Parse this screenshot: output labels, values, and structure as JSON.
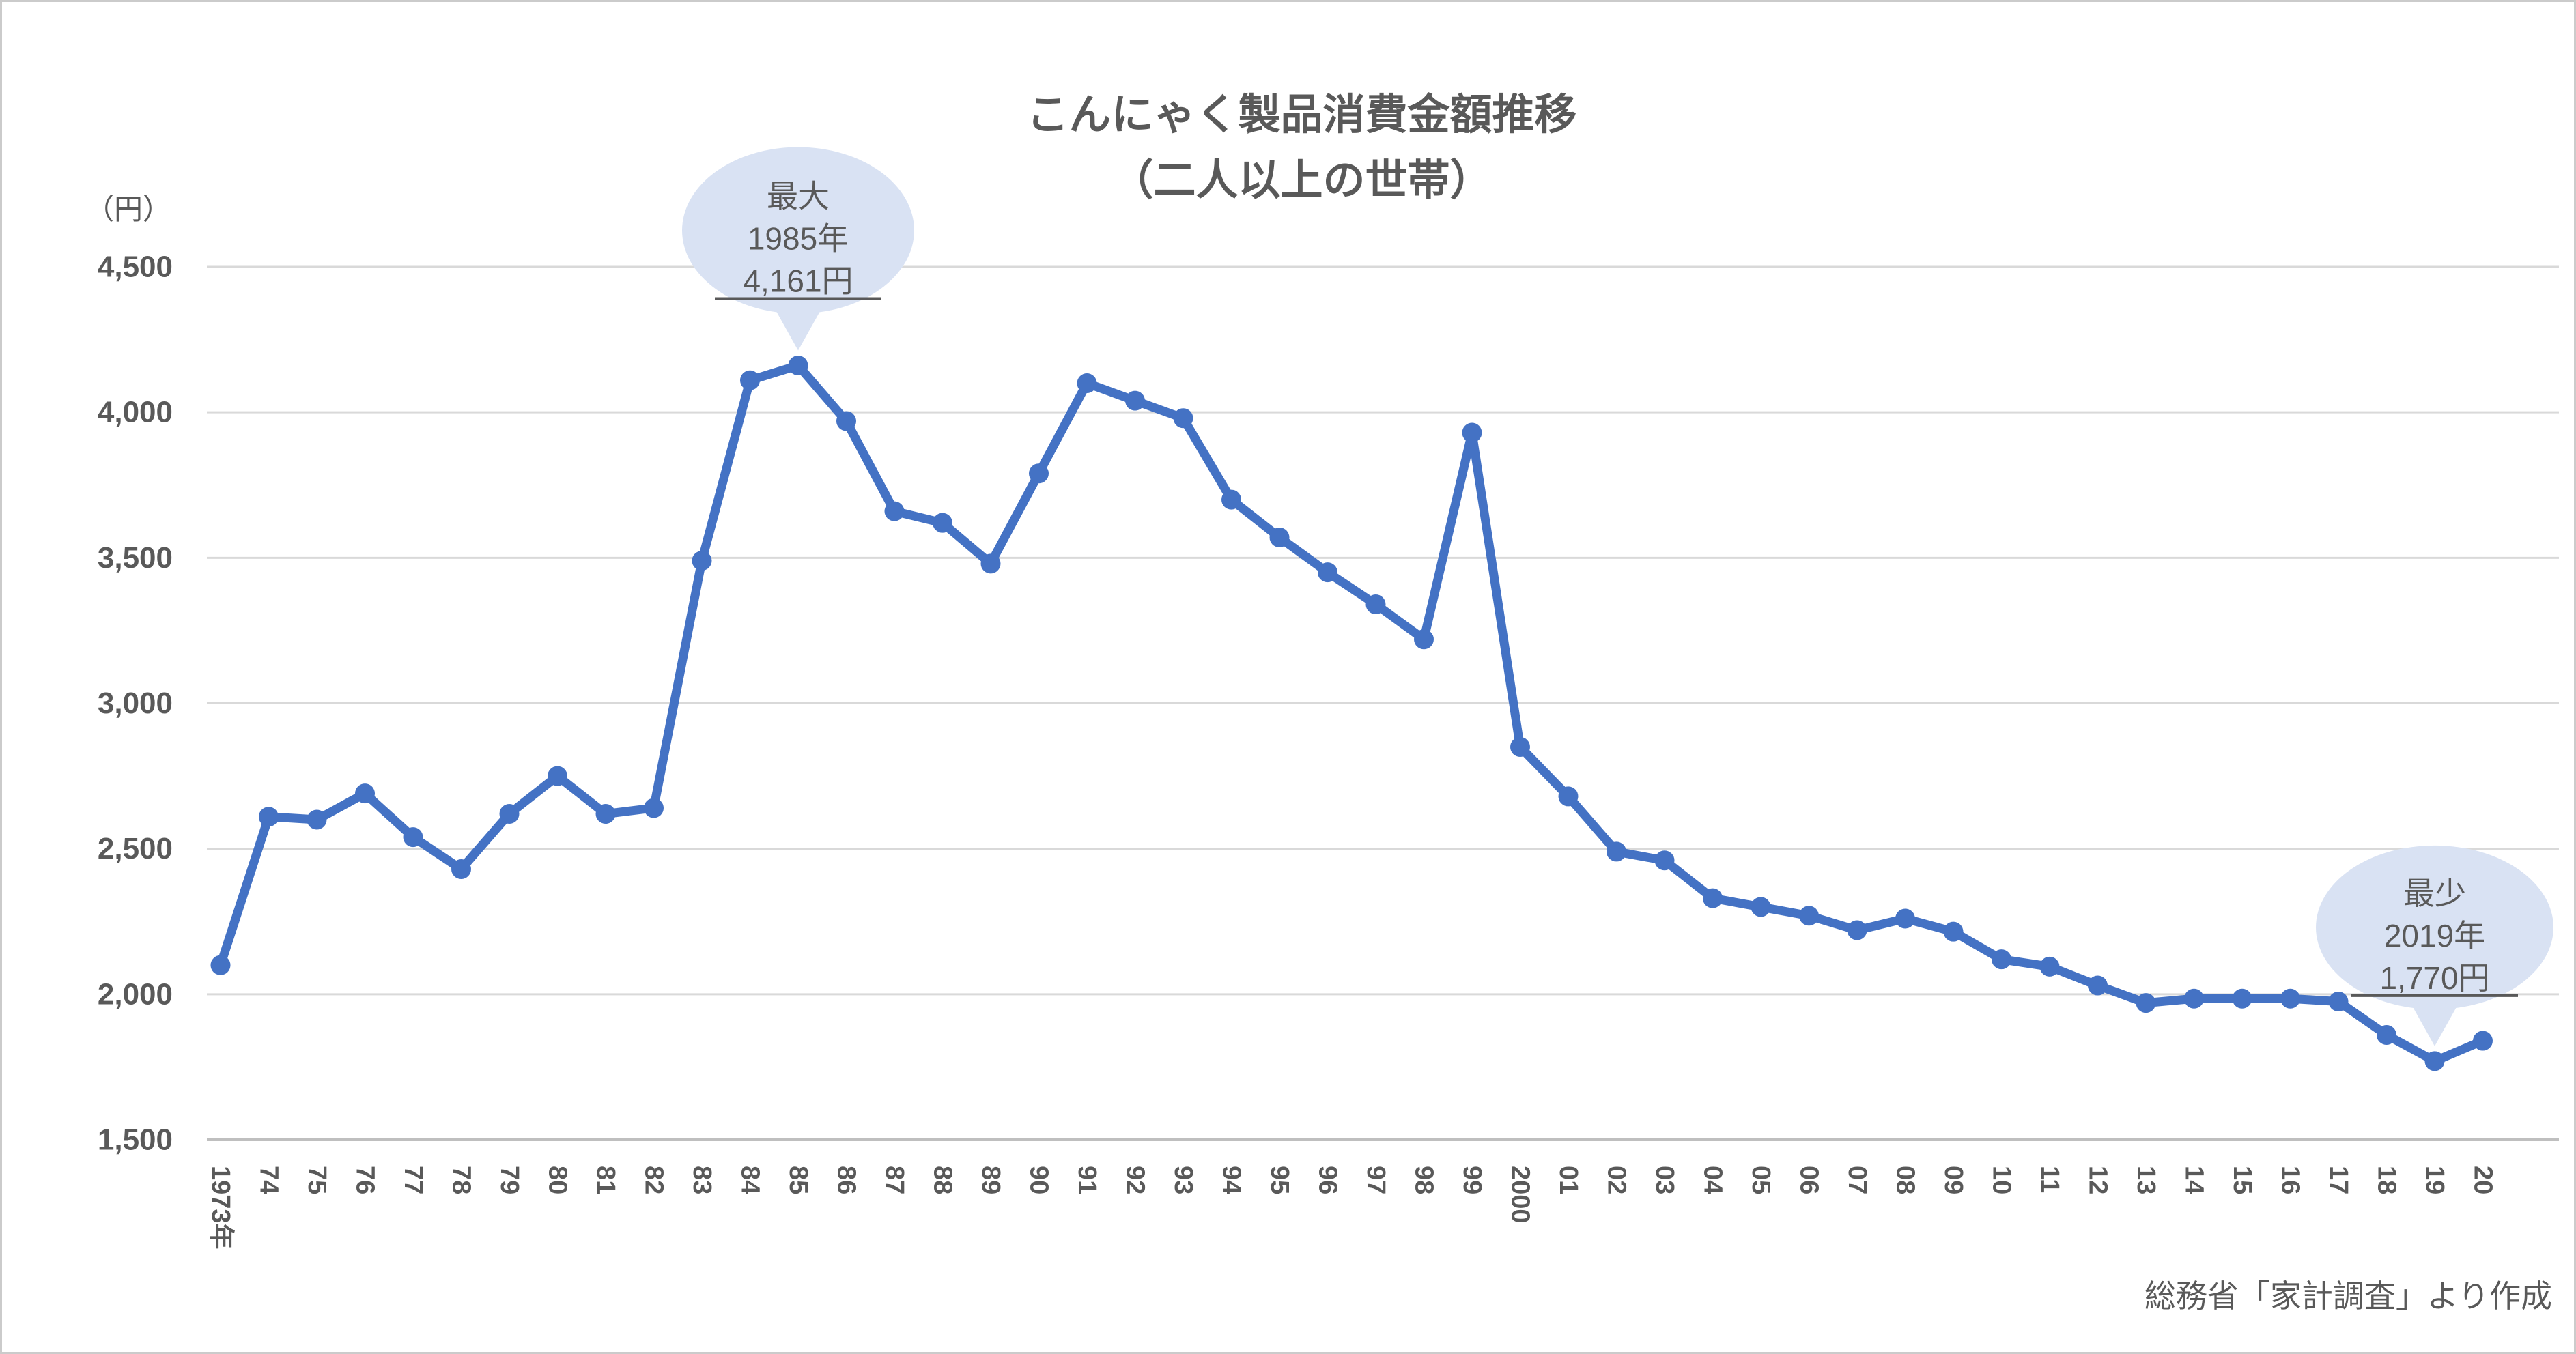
{
  "title": {
    "line1": "こんにゃく製品消費金額推移",
    "line2": "（二人以上の世帯）"
  },
  "source_note": "総務省「家計調査」より作成",
  "y_axis": {
    "unit_label": "（円）",
    "ticks": [
      "4,500",
      "4,000",
      "3,500",
      "3,000",
      "2,500",
      "2,000",
      "1,500"
    ],
    "tick_values": [
      4500,
      4000,
      3500,
      3000,
      2500,
      2000,
      1500
    ]
  },
  "annotations": {
    "max": {
      "label": "最大",
      "year_label": "1985年",
      "value_label": "4,161円",
      "index": 12,
      "value": 4161
    },
    "min": {
      "label": "最少",
      "year_label": "2019年",
      "value_label": "1,770円",
      "index": 46,
      "value": 1770
    }
  },
  "colors": {
    "line": "#4472C4",
    "bubble_fill": "#D9E2F3",
    "text": "#595959",
    "gridline": "#D9D9D9",
    "axis_line": "#BFBFBF"
  },
  "chart_data": {
    "type": "line",
    "title": "こんにゃく製品消費金額推移（二人以上の世帯）",
    "ylabel": "（円）",
    "xlabel": "",
    "ylim": [
      1500,
      4500
    ],
    "y_tick_step": 500,
    "grid": true,
    "legend_position": "none",
    "categories": [
      "1973年",
      "74",
      "75",
      "76",
      "77",
      "78",
      "79",
      "80",
      "81",
      "82",
      "83",
      "84",
      "85",
      "86",
      "87",
      "88",
      "89",
      "90",
      "91",
      "92",
      "93",
      "94",
      "95",
      "96",
      "97",
      "98",
      "99",
      "2000",
      "01",
      "02",
      "03",
      "04",
      "05",
      "06",
      "07",
      "08",
      "09",
      "10",
      "11",
      "12",
      "13",
      "14",
      "15",
      "16",
      "17",
      "18",
      "19",
      "20"
    ],
    "values": [
      2100,
      2610,
      2600,
      2690,
      2540,
      2430,
      2620,
      2750,
      2620,
      2640,
      3490,
      4110,
      4161,
      3970,
      3660,
      3620,
      3480,
      3790,
      4100,
      4040,
      3980,
      3700,
      3570,
      3450,
      3340,
      3220,
      3930,
      2850,
      2680,
      2490,
      2460,
      2330,
      2300,
      2270,
      2220,
      2260,
      2215,
      2120,
      2095,
      2030,
      1970,
      1985,
      1985,
      1985,
      1975,
      1860,
      1770,
      1840
    ],
    "series_name": "こんにゃく製品消費金額",
    "annotations": [
      {
        "type": "callout",
        "text": "最大 1985年 4,161円",
        "index": 12,
        "value": 4161
      },
      {
        "type": "callout",
        "text": "最少 2019年 1,770円",
        "index": 46,
        "value": 1770
      }
    ]
  }
}
